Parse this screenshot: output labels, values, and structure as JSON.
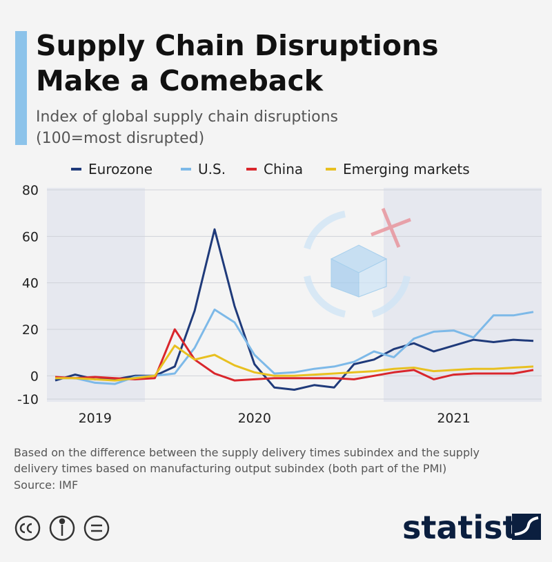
{
  "chart_data": {
    "type": "line",
    "title": [
      "Supply Chain Disruptions",
      "Make a Comeback"
    ],
    "subtitle": [
      "Index of global supply chain disruptions",
      "(100=most disrupted)"
    ],
    "categories": [
      null,
      null,
      "2019",
      null,
      null,
      null,
      null,
      null,
      null,
      null,
      "2020",
      null,
      null,
      null,
      null,
      null,
      null,
      null,
      null,
      null,
      "2021",
      null,
      null,
      null,
      null
    ],
    "series": [
      {
        "name": "Eurozone",
        "color": "#1f3a7a",
        "values": [
          -2,
          0.5,
          -1.5,
          -1.5,
          0,
          0,
          4,
          28,
          63,
          30,
          5,
          -5,
          -6,
          -4,
          -5,
          5,
          7,
          11.5,
          14,
          10.5,
          13,
          15.5,
          14.5,
          15.5,
          15
        ]
      },
      {
        "name": "U.S.",
        "color": "#7db9e8",
        "values": [
          -1,
          -1,
          -3,
          -3.5,
          -0.5,
          0,
          1,
          12,
          28.5,
          23,
          9,
          1,
          1.5,
          3,
          4,
          6,
          10.5,
          8,
          16,
          19,
          19.5,
          16.5,
          26,
          26,
          27.5
        ]
      },
      {
        "name": "China",
        "color": "#d9262c",
        "values": [
          -0.5,
          -1,
          -0.5,
          -1,
          -1.5,
          -1,
          20,
          7,
          1,
          -2,
          -1.5,
          -1,
          -1,
          -1,
          -1,
          -1.5,
          0,
          1.5,
          2.5,
          -1.5,
          0.5,
          1,
          1,
          1,
          2.5
        ]
      },
      {
        "name": "Emerging markets",
        "color": "#e8c020",
        "values": [
          -1,
          -1,
          -1.5,
          -2,
          -1,
          0,
          13,
          7,
          9,
          4.5,
          1.5,
          0,
          0,
          0.5,
          1,
          1.5,
          2,
          3,
          3.5,
          2,
          2.5,
          3,
          3,
          3.5,
          4
        ]
      }
    ],
    "ylim": [
      -10,
      80
    ],
    "yticks": [
      -10,
      0,
      20,
      40,
      60,
      80
    ],
    "grid": true,
    "legend": "top",
    "note": [
      "Based on the difference between the supply delivery times subindex and the supply",
      "delivery times based on manufacturing output subindex (both part of the PMI)"
    ],
    "source": "Source: IMF",
    "brand": "statista"
  }
}
